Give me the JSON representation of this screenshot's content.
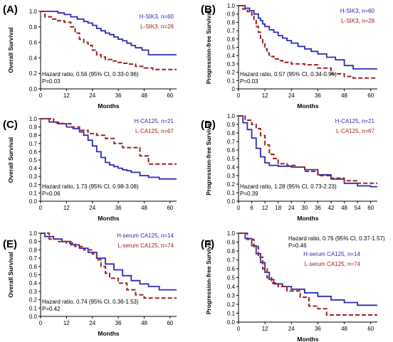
{
  "colors": {
    "high": "#2b2bb3",
    "low": "#9b2222",
    "axis": "#000000"
  },
  "chart_data": [
    {
      "type": "line",
      "label": "(A)",
      "subtype": "kaplan-meier",
      "xlabel": "Months",
      "ylabel": "Overall Survival",
      "xlim": [
        0,
        63
      ],
      "ylim": [
        0,
        1.0
      ],
      "xticks": [
        "0",
        "12",
        "24",
        "36",
        "48",
        "60"
      ],
      "yticks": [
        "0.0",
        "0.2",
        "0.4",
        "0.6",
        "0.8",
        "1.0"
      ],
      "legend_position": "top-right",
      "annotation": [
        "Hazard ratio, 0.56 (95% CI, 0.33-0.96)",
        "P=0.03"
      ],
      "annotation_position": "bottom-left",
      "series": [
        {
          "name": "H-SIK3, n=60",
          "color": "high",
          "style": "solid",
          "x": [
            0,
            5,
            8,
            11,
            14,
            17,
            20,
            22,
            24,
            26,
            28,
            30,
            32,
            34,
            36,
            38,
            40,
            42,
            44,
            47,
            50,
            63
          ],
          "y": [
            1.0,
            1.0,
            0.98,
            0.96,
            0.93,
            0.9,
            0.87,
            0.85,
            0.82,
            0.78,
            0.75,
            0.72,
            0.7,
            0.67,
            0.64,
            0.62,
            0.59,
            0.56,
            0.53,
            0.5,
            0.44,
            0.44
          ]
        },
        {
          "name": "L-SIK3, n=28",
          "color": "low",
          "style": "dashed",
          "x": [
            0,
            2,
            5,
            8,
            11,
            14,
            16,
            18,
            20,
            22,
            24,
            26,
            28,
            30,
            33,
            36,
            38,
            40,
            44,
            48,
            52,
            63
          ],
          "y": [
            1.0,
            0.93,
            0.9,
            0.88,
            0.86,
            0.8,
            0.72,
            0.64,
            0.6,
            0.56,
            0.5,
            0.44,
            0.41,
            0.38,
            0.36,
            0.34,
            0.33,
            0.32,
            0.29,
            0.27,
            0.25,
            0.25
          ]
        }
      ]
    },
    {
      "type": "line",
      "label": "(B)",
      "subtype": "kaplan-meier",
      "xlabel": "Months",
      "ylabel": "Progression-free Survival",
      "xlim": [
        0,
        63
      ],
      "ylim": [
        0,
        1.0
      ],
      "xticks": [
        "0",
        "12",
        "24",
        "36",
        "48",
        "60"
      ],
      "yticks": [
        "0",
        "0.1",
        "0.2",
        "0.3",
        "0.4",
        "0.5",
        "0.6",
        "0.7",
        "0.8",
        "0.9",
        "1.0"
      ],
      "legend_position": "top-right",
      "annotation": [
        "Hazard ratio, 0.57 (95% CI, 0.34-0.95)",
        "P=0.03"
      ],
      "annotation_position": "bottom-left",
      "series": [
        {
          "name": "H-SIK3, n=60",
          "color": "high",
          "style": "solid",
          "x": [
            0,
            3,
            5,
            7,
            9,
            10,
            11,
            12,
            14,
            16,
            18,
            20,
            22,
            24,
            27,
            30,
            33,
            36,
            40,
            44,
            48,
            52,
            63
          ],
          "y": [
            1.0,
            0.97,
            0.94,
            0.9,
            0.85,
            0.82,
            0.78,
            0.75,
            0.71,
            0.68,
            0.64,
            0.61,
            0.58,
            0.55,
            0.51,
            0.48,
            0.45,
            0.42,
            0.38,
            0.35,
            0.28,
            0.24,
            0.24
          ]
        },
        {
          "name": "L-SIK3, n=28",
          "color": "low",
          "style": "dashed",
          "x": [
            0,
            2,
            4,
            6,
            7,
            8,
            9,
            10,
            11,
            12,
            13,
            14,
            16,
            18,
            20,
            24,
            30,
            36,
            42,
            48,
            52,
            63
          ],
          "y": [
            1.0,
            0.96,
            0.93,
            0.89,
            0.82,
            0.75,
            0.68,
            0.61,
            0.54,
            0.48,
            0.43,
            0.39,
            0.36,
            0.34,
            0.32,
            0.3,
            0.29,
            0.25,
            0.18,
            0.15,
            0.13,
            0.13
          ]
        }
      ]
    },
    {
      "type": "line",
      "label": "(C)",
      "subtype": "kaplan-meier",
      "xlabel": "Months",
      "ylabel": "Overall Survival",
      "xlim": [
        0,
        63
      ],
      "ylim": [
        0,
        1.0
      ],
      "xticks": [
        "0",
        "12",
        "24",
        "36",
        "48",
        "60"
      ],
      "yticks": [
        "0.0",
        "0.1",
        "0.2",
        "0.3",
        "0.4",
        "0.5",
        "0.6",
        "0.7",
        "0.8",
        "0.9",
        "1.0"
      ],
      "legend_position": "top-right",
      "annotation": [
        "Hazard ratio, 1.73 (95% CI, 0.98-3.08)",
        "P=0.06"
      ],
      "annotation_position": "bottom-left",
      "series": [
        {
          "name": "H-CA125, n=21",
          "color": "high",
          "style": "solid",
          "x": [
            0,
            4,
            8,
            12,
            15,
            18,
            20,
            22,
            24,
            26,
            28,
            30,
            32,
            34,
            36,
            38,
            40,
            42,
            46,
            50,
            55,
            63
          ],
          "y": [
            1.0,
            0.96,
            0.94,
            0.9,
            0.88,
            0.84,
            0.8,
            0.74,
            0.67,
            0.6,
            0.53,
            0.47,
            0.44,
            0.42,
            0.4,
            0.38,
            0.37,
            0.35,
            0.31,
            0.29,
            0.27,
            0.27
          ]
        },
        {
          "name": "L-CA125, n=67",
          "color": "low",
          "style": "dashed",
          "x": [
            0,
            6,
            10,
            14,
            18,
            22,
            26,
            30,
            34,
            38,
            42,
            46,
            50,
            63
          ],
          "y": [
            1.0,
            0.95,
            0.94,
            0.9,
            0.86,
            0.82,
            0.8,
            0.76,
            0.7,
            0.65,
            0.65,
            0.55,
            0.45,
            0.45
          ]
        }
      ]
    },
    {
      "type": "line",
      "label": "(D)",
      "subtype": "kaplan-meier",
      "xlabel": "Months",
      "ylabel": "Progression-free Survival",
      "xlim": [
        0,
        63
      ],
      "ylim": [
        0,
        1.0
      ],
      "xticks": [
        "0",
        "6",
        "12",
        "18",
        "24",
        "30",
        "36",
        "42",
        "48",
        "54",
        "60"
      ],
      "yticks": [
        "0.0",
        "0.1",
        "0.2",
        "0.3",
        "0.4",
        "0.5",
        "0.6",
        "0.7",
        "0.8",
        "0.9",
        "1.0"
      ],
      "legend_position": "top-right",
      "annotation": [
        "Hazard ratio, 1.28 (95% CI, 0.73-2.23)",
        "P=0.39"
      ],
      "annotation_position": "bottom-left",
      "series": [
        {
          "name": "H-CA125, n=21",
          "color": "high",
          "style": "solid",
          "x": [
            0,
            2,
            4,
            6,
            8,
            10,
            12,
            14,
            18,
            24,
            30,
            36,
            42,
            48,
            54,
            60,
            63
          ],
          "y": [
            1.0,
            0.92,
            0.84,
            0.74,
            0.62,
            0.52,
            0.45,
            0.42,
            0.41,
            0.4,
            0.37,
            0.31,
            0.26,
            0.21,
            0.18,
            0.17,
            0.17
          ]
        },
        {
          "name": "L-CA125, n=67",
          "color": "low",
          "style": "dashed",
          "x": [
            0,
            3,
            6,
            8,
            10,
            12,
            14,
            16,
            18,
            22,
            26,
            30,
            36,
            42,
            48,
            54,
            63
          ],
          "y": [
            1.0,
            0.95,
            0.9,
            0.85,
            0.77,
            0.66,
            0.55,
            0.5,
            0.44,
            0.42,
            0.4,
            0.35,
            0.3,
            0.27,
            0.24,
            0.21,
            0.21
          ]
        }
      ]
    },
    {
      "type": "line",
      "label": "(E)",
      "subtype": "kaplan-meier",
      "xlabel": "Months",
      "ylabel": "Overall Survival",
      "xlim": [
        0,
        63
      ],
      "ylim": [
        0,
        1.0
      ],
      "xticks": [
        "0",
        "12",
        "24",
        "36",
        "48",
        "60"
      ],
      "yticks": [
        "0.0",
        "0.1",
        "0.2",
        "0.3",
        "0.4",
        "0.5",
        "0.6",
        "0.7",
        "0.8",
        "0.9",
        "1.0"
      ],
      "legend_position": "top-right",
      "annotation": [
        "Hazard ratio, 0.74 (95% CI, 0.36-1.53)",
        "P=0.42"
      ],
      "annotation_position": "bottom-left",
      "series": [
        {
          "name": "H-serum CA125, n=14",
          "color": "high",
          "style": "solid",
          "x": [
            0,
            2,
            6,
            10,
            14,
            18,
            22,
            26,
            30,
            34,
            38,
            42,
            46,
            50,
            55,
            63
          ],
          "y": [
            1.0,
            0.96,
            0.93,
            0.9,
            0.86,
            0.82,
            0.77,
            0.7,
            0.63,
            0.56,
            0.49,
            0.43,
            0.39,
            0.36,
            0.32,
            0.32
          ]
        },
        {
          "name": "L-serum CA125, n=74",
          "color": "low",
          "style": "dashed",
          "x": [
            0,
            4,
            8,
            12,
            16,
            20,
            24,
            26,
            28,
            30,
            32,
            36,
            40,
            44,
            48,
            63
          ],
          "y": [
            1.0,
            0.93,
            0.9,
            0.88,
            0.84,
            0.8,
            0.75,
            0.68,
            0.6,
            0.52,
            0.46,
            0.4,
            0.32,
            0.26,
            0.22,
            0.22
          ]
        }
      ]
    },
    {
      "type": "line",
      "label": "(F)",
      "subtype": "kaplan-meier",
      "xlabel": "Months",
      "ylabel": "Progression-free Survival",
      "xlim": [
        0,
        63
      ],
      "ylim": [
        0,
        1.0
      ],
      "xticks": [
        "0",
        "12",
        "24",
        "36",
        "48",
        "60"
      ],
      "yticks": [
        "0.0",
        "0.1",
        "0.2",
        "0.3",
        "0.4",
        "0.5",
        "0.6",
        "0.7",
        "0.8",
        "0.9",
        "1.0"
      ],
      "legend_position": "top-right",
      "annotation": [
        "Hazard ratio, 0.76 (95% CI, 0.37-1.57)",
        "P=0.46"
      ],
      "annotation_position": "top-right",
      "series": [
        {
          "name": "H-serum CA125, n=14",
          "color": "high",
          "style": "solid",
          "x": [
            0,
            3,
            6,
            8,
            10,
            12,
            14,
            16,
            20,
            24,
            30,
            36,
            42,
            48,
            54,
            63
          ],
          "y": [
            1.0,
            0.94,
            0.86,
            0.77,
            0.67,
            0.56,
            0.48,
            0.43,
            0.4,
            0.37,
            0.33,
            0.29,
            0.25,
            0.22,
            0.19,
            0.19
          ]
        },
        {
          "name": "L-serum CA125, n=74",
          "color": "low",
          "style": "dashed",
          "x": [
            0,
            4,
            7,
            9,
            11,
            13,
            15,
            18,
            22,
            28,
            32,
            36,
            40,
            63
          ],
          "y": [
            1.0,
            0.93,
            0.85,
            0.73,
            0.6,
            0.5,
            0.44,
            0.4,
            0.35,
            0.28,
            0.18,
            0.15,
            0.08,
            0.08
          ]
        }
      ]
    }
  ]
}
